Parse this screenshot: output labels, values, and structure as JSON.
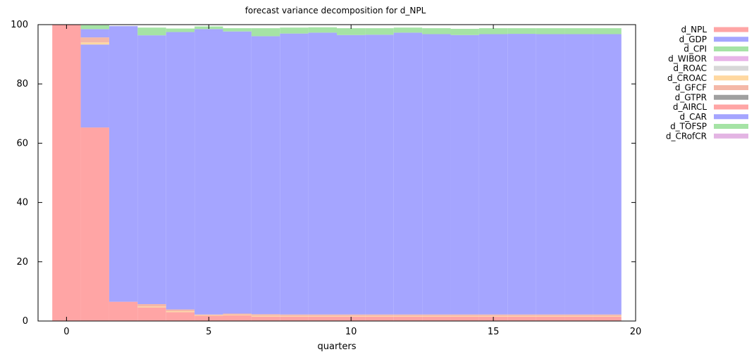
{
  "chart_data": {
    "type": "area",
    "title": "forecast variance decomposition for d_NPL",
    "xlabel": "quarters",
    "ylabel": "",
    "xlim": [
      -1,
      20
    ],
    "ylim": [
      0,
      100
    ],
    "xticks": [
      0,
      5,
      10,
      15,
      20
    ],
    "yticks": [
      0,
      20,
      40,
      60,
      80,
      100
    ],
    "grid": false,
    "legend_position": "right",
    "x": [
      0,
      1,
      2,
      3,
      4,
      5,
      6,
      7,
      8,
      9,
      10,
      11,
      12,
      13,
      14,
      15,
      16,
      17,
      18,
      19
    ],
    "series": [
      {
        "name": "d_NPL",
        "color": "#ffa5a5",
        "values": [
          100,
          65.3,
          6.5,
          4.6,
          3.0,
          1.8,
          1.9,
          1.5,
          1.5,
          1.5,
          1.5,
          1.5,
          1.5,
          1.5,
          1.5,
          1.5,
          1.5,
          1.5,
          1.5,
          1.5
        ]
      },
      {
        "name": "d_GDP",
        "color": "#a5a5ff",
        "values": [
          0,
          28.0,
          0,
          0,
          0,
          0,
          0,
          0,
          0,
          0,
          0,
          0,
          0,
          0,
          0,
          0,
          0,
          0,
          0,
          0
        ]
      },
      {
        "name": "d_CPI",
        "color": "#a5e3a5",
        "values": [
          0,
          0,
          0,
          0,
          0,
          0,
          0,
          0,
          0,
          0,
          0,
          0,
          0,
          0,
          0,
          0,
          0,
          0,
          0,
          0
        ]
      },
      {
        "name": "d_WIBOR",
        "color": "#e8b4e8",
        "values": [
          0,
          0,
          0,
          0,
          0,
          0,
          0,
          0,
          0,
          0,
          0,
          0,
          0,
          0,
          0,
          0,
          0,
          0,
          0,
          0
        ]
      },
      {
        "name": "d_ROAC",
        "color": "#d8d8d8",
        "values": [
          0,
          0,
          0,
          0,
          0,
          0,
          0,
          0,
          0,
          0,
          0,
          0,
          0,
          0,
          0,
          0,
          0,
          0,
          0,
          0
        ]
      },
      {
        "name": "d_CROAC",
        "color": "#ffd8a0",
        "values": [
          0,
          0.7,
          0,
          0.3,
          0.3,
          0.2,
          0.2,
          0.3,
          0.2,
          0.2,
          0.2,
          0.2,
          0.2,
          0.2,
          0.2,
          0.2,
          0.2,
          0.2,
          0.2,
          0.2
        ]
      },
      {
        "name": "d_GFCF",
        "color": "#f4b8a8",
        "values": [
          0,
          1.7,
          0,
          0.8,
          0.6,
          0.2,
          0.4,
          0.5,
          0.5,
          0.5,
          0.5,
          0.5,
          0.5,
          0.5,
          0.5,
          0.5,
          0.5,
          0.5,
          0.5,
          0.5
        ]
      },
      {
        "name": "d_GTPR",
        "color": "#a0a0a0",
        "values": [
          0,
          0,
          0,
          0,
          0,
          0,
          0,
          0,
          0,
          0,
          0,
          0,
          0,
          0,
          0,
          0,
          0,
          0,
          0,
          0
        ]
      },
      {
        "name": "d_AIRCL",
        "color": "#ffa5a5",
        "values": [
          0,
          0,
          0,
          0,
          0,
          0,
          0,
          0,
          0,
          0,
          0,
          0,
          0,
          0,
          0,
          0,
          0,
          0,
          0,
          0
        ]
      },
      {
        "name": "d_CAR",
        "color": "#a5a5ff",
        "values": [
          0,
          2.8,
          93.0,
          90.7,
          93.6,
          96.3,
          95.2,
          93.8,
          94.8,
          95.1,
          94.3,
          94.4,
          95.1,
          94.6,
          94.3,
          94.6,
          94.7,
          94.6,
          94.6,
          94.6
        ]
      },
      {
        "name": "d_TOFSP",
        "color": "#a5e3a5",
        "values": [
          0,
          1.3,
          0,
          2.6,
          1.2,
          0.9,
          1.1,
          2.7,
          2.0,
          1.8,
          2.3,
          2.2,
          1.7,
          2.0,
          2.1,
          2.0,
          1.9,
          2.0,
          2.0,
          2.0
        ]
      },
      {
        "name": "d_CRofCR",
        "color": "#e3b4e3",
        "values": [
          0,
          0,
          0,
          0,
          0,
          0,
          0,
          0,
          0,
          0,
          0,
          0,
          0,
          0,
          0,
          0,
          0,
          0,
          0,
          0
        ]
      }
    ]
  }
}
